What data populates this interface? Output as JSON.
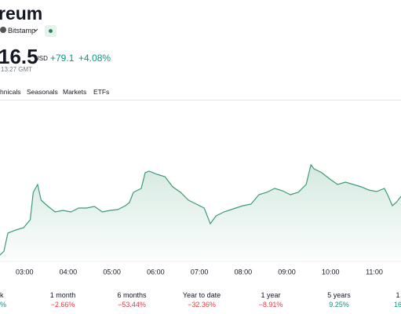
{
  "header": {
    "title": "reum",
    "exchange": "Bitstamp",
    "price": "16.5",
    "currency": "USD",
    "change": "+79.1",
    "change_percent": "+4.08%",
    "time": "13:27 GMT"
  },
  "tabs": [
    "hnicals",
    "Seasonals",
    "Markets",
    "ETFs"
  ],
  "chart_data": {
    "type": "line",
    "x": [
      2.44,
      2.53,
      2.62,
      2.8,
      2.98,
      3.13,
      3.2,
      3.3,
      3.38,
      3.52,
      3.7,
      3.88,
      4.06,
      4.24,
      4.42,
      4.6,
      4.78,
      4.96,
      5.13,
      5.31,
      5.4,
      5.49,
      5.67,
      5.76,
      5.85,
      6.03,
      6.21,
      6.39,
      6.57,
      6.75,
      6.93,
      7.11,
      7.25,
      7.38,
      7.56,
      7.83,
      8.0,
      8.18,
      8.36,
      8.54,
      8.72,
      8.9,
      9.08,
      9.26,
      9.44,
      9.55,
      9.62,
      9.8,
      9.98,
      10.16,
      10.34,
      10.52,
      10.7,
      10.87,
      11.05,
      11.23,
      11.32,
      11.41,
      11.5,
      11.61
    ],
    "series": [
      {
        "color": "#3d9b74",
        "values": [
          2.5,
          5,
          16.5,
          18.5,
          20,
          25,
          42.5,
          47.5,
          37.5,
          34,
          30,
          31,
          30,
          32.5,
          32.5,
          33.5,
          30,
          31,
          31.5,
          34,
          36,
          42.5,
          45,
          55,
          56,
          54,
          52.5,
          46,
          42.5,
          37.5,
          35,
          32.5,
          22.5,
          27.5,
          30,
          32.5,
          34,
          35,
          41,
          42.5,
          45,
          43.5,
          41,
          42.5,
          47.5,
          60,
          57.5,
          55,
          51,
          47.5,
          49,
          47.5,
          46,
          44,
          43,
          45,
          40,
          34,
          36,
          40
        ]
      }
    ],
    "xlim": [
      2.44,
      11.61
    ],
    "ylim": [
      0,
      100
    ],
    "xticks": [
      {
        "value": 3,
        "label": "03:00"
      },
      {
        "value": 4,
        "label": "04:00"
      },
      {
        "value": 5,
        "label": "05:00"
      },
      {
        "value": 6,
        "label": "06:00"
      },
      {
        "value": 7,
        "label": "07:00"
      },
      {
        "value": 8,
        "label": "08:00"
      },
      {
        "value": 9,
        "label": "09:00"
      },
      {
        "value": 10,
        "label": "10:00"
      },
      {
        "value": 11,
        "label": "11:00"
      }
    ]
  },
  "performance": [
    {
      "period": "k",
      "change": "%"
    },
    {
      "period": "1 month",
      "change": "−2.66%"
    },
    {
      "period": "6 months",
      "change": "−53.44%"
    },
    {
      "period": "Year to date",
      "change": "−32.36%"
    },
    {
      "period": "1 year",
      "change": "−8.91%"
    },
    {
      "period": "5 years",
      "change": "9.25%"
    },
    {
      "period": "1",
      "change": "16"
    }
  ]
}
